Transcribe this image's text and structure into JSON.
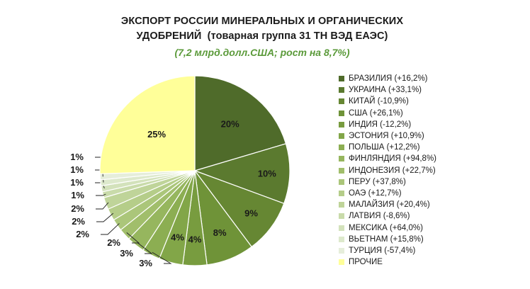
{
  "title_line1": "ЭКСПОРТ  РОССИИ  МИНЕРАЛЬНЫХ  И  ОРГАНИЧЕСКИХ",
  "title_line2a": "УДОБРЕНИЙ",
  "title_line2b": "(товарная  группа 31 ТН  ВЭД ЕАЭС)",
  "subtitle": "(7,2 млрд.долл.США;   рост на 8,7%)",
  "chart_data": {
    "type": "pie",
    "title": "ЭКСПОРТ  РОССИИ  МИНЕРАЛЬНЫХ  И  ОРГАНИЧЕСКИХ УДОБРЕНИЙ  (товарная  группа 31 ТН  ВЭД ЕАЭС)",
    "subtitle": "(7,2 млрд.долл.США;   рост на 8,7%)",
    "legend_position": "right",
    "slices": [
      {
        "label": "БРАЗИЛИЯ (+16,2%)",
        "value": 20,
        "value_label": "20%",
        "color": "#4f6b2a"
      },
      {
        "label": "УКРАИНА (+33,1%)",
        "value": 10,
        "value_label": "10%",
        "color": "#5b7a2f"
      },
      {
        "label": "КИТАЙ (-10,9%)",
        "value": 9,
        "value_label": "9%",
        "color": "#668733"
      },
      {
        "label": "США (+26,1%)",
        "value": 8,
        "value_label": "8%",
        "color": "#6f9338"
      },
      {
        "label": "ИНДИЯ (-12,2%)",
        "value": 4,
        "value_label": "4%",
        "color": "#789c3f"
      },
      {
        "label": "ЭСТОНИЯ (+10,9%)",
        "value": 4,
        "value_label": "4%",
        "color": "#82a648"
      },
      {
        "label": "ПОЛЬША (+12,2%)",
        "value": 3,
        "value_label": "3%",
        "color": "#8cae52"
      },
      {
        "label": "ФИНЛЯНДИЯ (+94,8%)",
        "value": 3,
        "value_label": "3%",
        "color": "#96b65e"
      },
      {
        "label": "ИНДОНЕЗИЯ (+22,7%)",
        "value": 2,
        "value_label": "2%",
        "color": "#a1be6b"
      },
      {
        "label": "ПЕРУ (+37,8%)",
        "value": 2,
        "value_label": "2%",
        "color": "#abc67a"
      },
      {
        "label": "ОАЭ (+12,7%)",
        "value": 2,
        "value_label": "2%",
        "color": "#b5cd89"
      },
      {
        "label": "МАЛАЙЗИЯ (+20,4%)",
        "value": 2,
        "value_label": "2%",
        "color": "#bfd499"
      },
      {
        "label": "ЛАТВИЯ (-8,6%)",
        "value": 1,
        "value_label": "1%",
        "color": "#c9dbaa"
      },
      {
        "label": "МЕКСИКА (+64,0%)",
        "value": 1,
        "value_label": "1%",
        "color": "#d3e2bb"
      },
      {
        "label": "ВЬЕТНАМ (+15,8%)",
        "value": 1,
        "value_label": "1%",
        "color": "#dde9cc"
      },
      {
        "label": "ТУРЦИЯ (-57,4%)",
        "value": 1,
        "value_label": "1%",
        "color": "#e6eedb"
      },
      {
        "label": "ПРОЧИЕ",
        "value": 25,
        "value_label": "25%",
        "color": "#ffff99"
      }
    ]
  }
}
